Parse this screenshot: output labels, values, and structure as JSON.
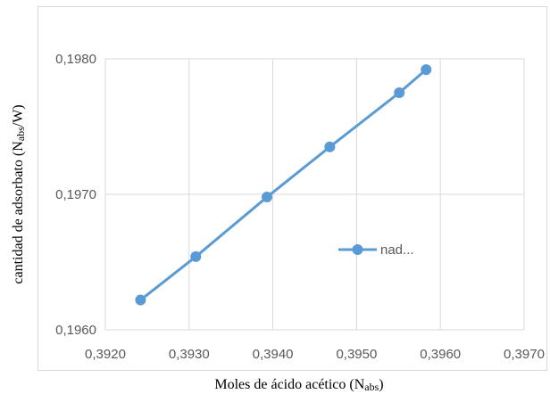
{
  "chart_data": {
    "type": "line",
    "title": "",
    "xlabel": {
      "main": "Moles de ácido acético  (N",
      "sub": "abs",
      "end": ")"
    },
    "ylabel": {
      "main": "cantidad de adsorbato  (N",
      "sub": "abs",
      "end": "/W)"
    },
    "xlim": [
      0.392,
      0.397
    ],
    "ylim": [
      0.196,
      0.198
    ],
    "x_ticks": [
      0.392,
      0.393,
      0.394,
      0.395,
      0.396,
      0.397
    ],
    "x_tick_labels": [
      "0,3920",
      "0,3930",
      "0,3940",
      "0,3950",
      "0,3960",
      "0,3970"
    ],
    "y_ticks": [
      0.196,
      0.197,
      0.198
    ],
    "y_tick_labels": [
      "0,1960",
      "0,1970",
      "0,1980"
    ],
    "grid": "horizontal and vertical",
    "legend_position": "right",
    "series": [
      {
        "name": "nad...",
        "color": "#5B9BD5",
        "x": [
          0.39242,
          0.39308,
          0.39393,
          0.39468,
          0.39551,
          0.39583
        ],
        "y": [
          0.19622,
          0.19654,
          0.19698,
          0.19735,
          0.19775,
          0.19792
        ]
      }
    ]
  }
}
